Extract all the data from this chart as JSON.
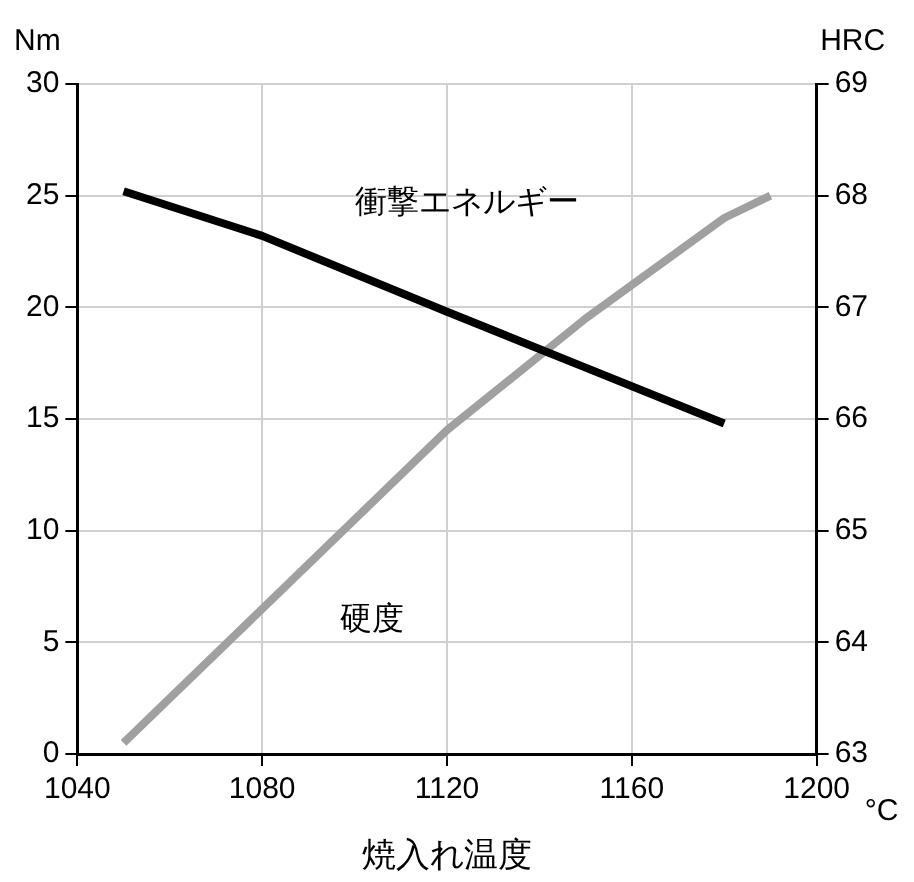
{
  "chart_data": {
    "type": "line",
    "xlabel": "焼入れ温度",
    "ylabel": "Nm",
    "y2label": "HRC",
    "annotations": [
      "°C"
    ],
    "series": [
      {
        "name": "衝撃エネルギー",
        "color": "#000000",
        "x": [
          1050,
          1080,
          1120,
          1150,
          1180
        ],
        "values": [
          25.2,
          23.2,
          19.8,
          17.3,
          14.8
        ]
      },
      {
        "name": "硬度",
        "color": "#a0a0a0",
        "axis": "y2",
        "x": [
          1050,
          1080,
          1120,
          1150,
          1180,
          1190
        ],
        "values": [
          63.1,
          64.3,
          65.9,
          66.9,
          67.8,
          68.0
        ]
      }
    ],
    "xlim": [
      1040,
      1200
    ],
    "xticks": [
      1040,
      1080,
      1120,
      1160,
      1200
    ],
    "ylim": [
      0,
      30
    ],
    "yticks": [
      0,
      5,
      10,
      15,
      20,
      25,
      30
    ],
    "y2lim": [
      63,
      69
    ],
    "y2ticks": [
      63,
      64,
      65,
      66,
      67,
      68,
      69
    ],
    "grid": true,
    "legend": false,
    "marker": "none",
    "line_style": "solid"
  }
}
